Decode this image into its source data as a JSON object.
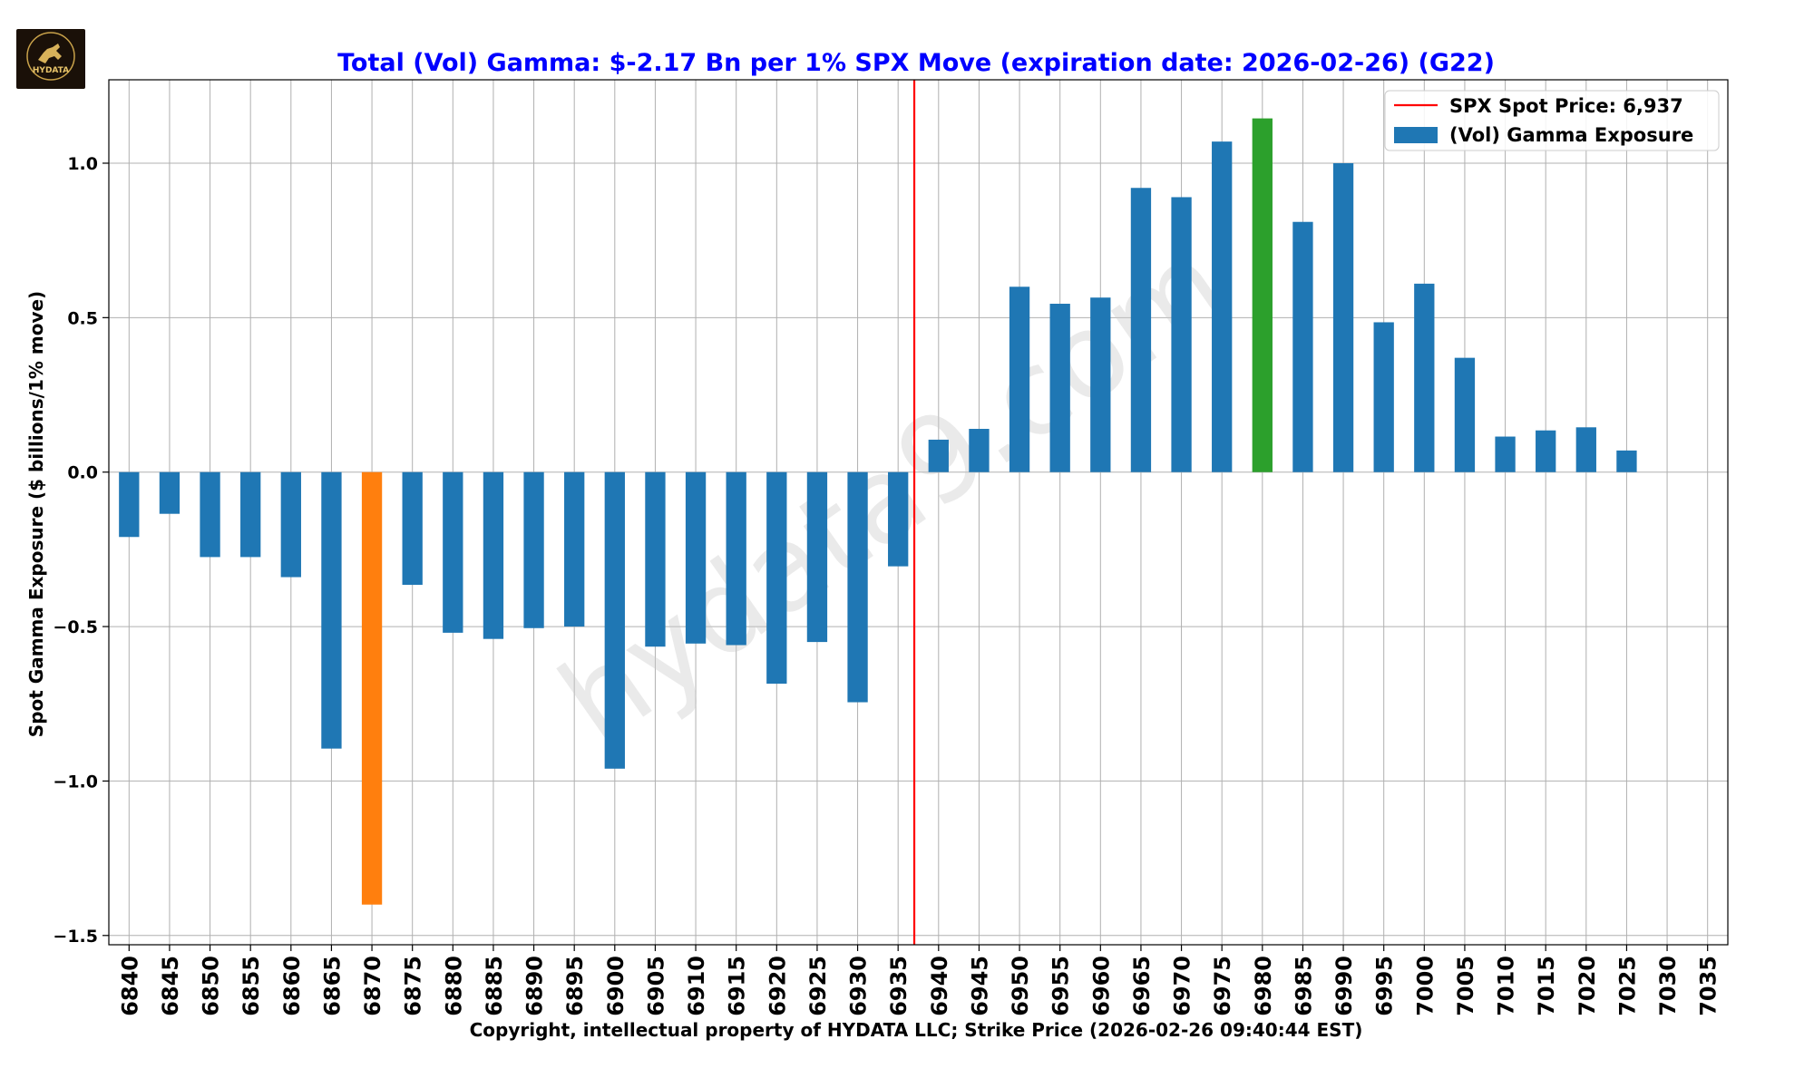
{
  "logo": {
    "text": "HYDATA",
    "icon": "bull-logo-icon"
  },
  "watermark": "hydata9.com",
  "colors": {
    "title": "#0000ff",
    "bar": "#1f77b4",
    "bar_min": "#ff7f0e",
    "bar_max": "#2ca02c",
    "spot_line": "#ff0000",
    "grid": "#b0b0b0"
  },
  "chart_data": {
    "type": "bar",
    "title": "Total (Vol) Gamma: $-2.17 Bn per 1% SPX Move (expiration date: 2026-02-26) (G22)",
    "xlabel": "Copyright, intellectual property of HYDATA LLC; Strike Price (2026-02-26 09:40:44 EST)",
    "ylabel": "Spot Gamma Exposure ($ billions/1% move)",
    "categories": [
      "6840",
      "6845",
      "6850",
      "6855",
      "6860",
      "6865",
      "6870",
      "6875",
      "6880",
      "6885",
      "6890",
      "6895",
      "6900",
      "6905",
      "6910",
      "6915",
      "6920",
      "6925",
      "6930",
      "6935",
      "6940",
      "6945",
      "6950",
      "6955",
      "6960",
      "6965",
      "6970",
      "6975",
      "6980",
      "6985",
      "6990",
      "6995",
      "7000",
      "7005",
      "7010",
      "7015",
      "7020",
      "7025",
      "7030",
      "7035"
    ],
    "values": [
      -0.21,
      -0.135,
      -0.275,
      -0.275,
      -0.34,
      -0.895,
      -1.4,
      -0.365,
      -0.52,
      -0.54,
      -0.505,
      -0.5,
      -0.96,
      -0.565,
      -0.555,
      -0.56,
      -0.685,
      -0.55,
      -0.745,
      -0.305,
      0.105,
      0.14,
      0.6,
      0.545,
      0.565,
      0.92,
      0.89,
      1.07,
      1.145,
      0.81,
      1.0,
      0.485,
      0.61,
      0.37,
      0.115,
      0.135,
      0.145,
      0.07,
      0,
      0
    ],
    "highlight_min_index": 6,
    "highlight_max_index": 28,
    "ylim": [
      -1.53,
      1.27
    ],
    "yticks": [
      -1.5,
      -1.0,
      -0.5,
      0.0,
      0.5,
      1.0
    ],
    "ytick_labels": [
      "−1.5",
      "−1.0",
      "−0.5",
      "0.0",
      "0.5",
      "1.0"
    ],
    "spot_price": 6937,
    "legend": {
      "position": "top-right",
      "spot_label": "SPX Spot Price: 6,937",
      "bar_label": "(Vol) Gamma Exposure"
    },
    "grid": true
  }
}
